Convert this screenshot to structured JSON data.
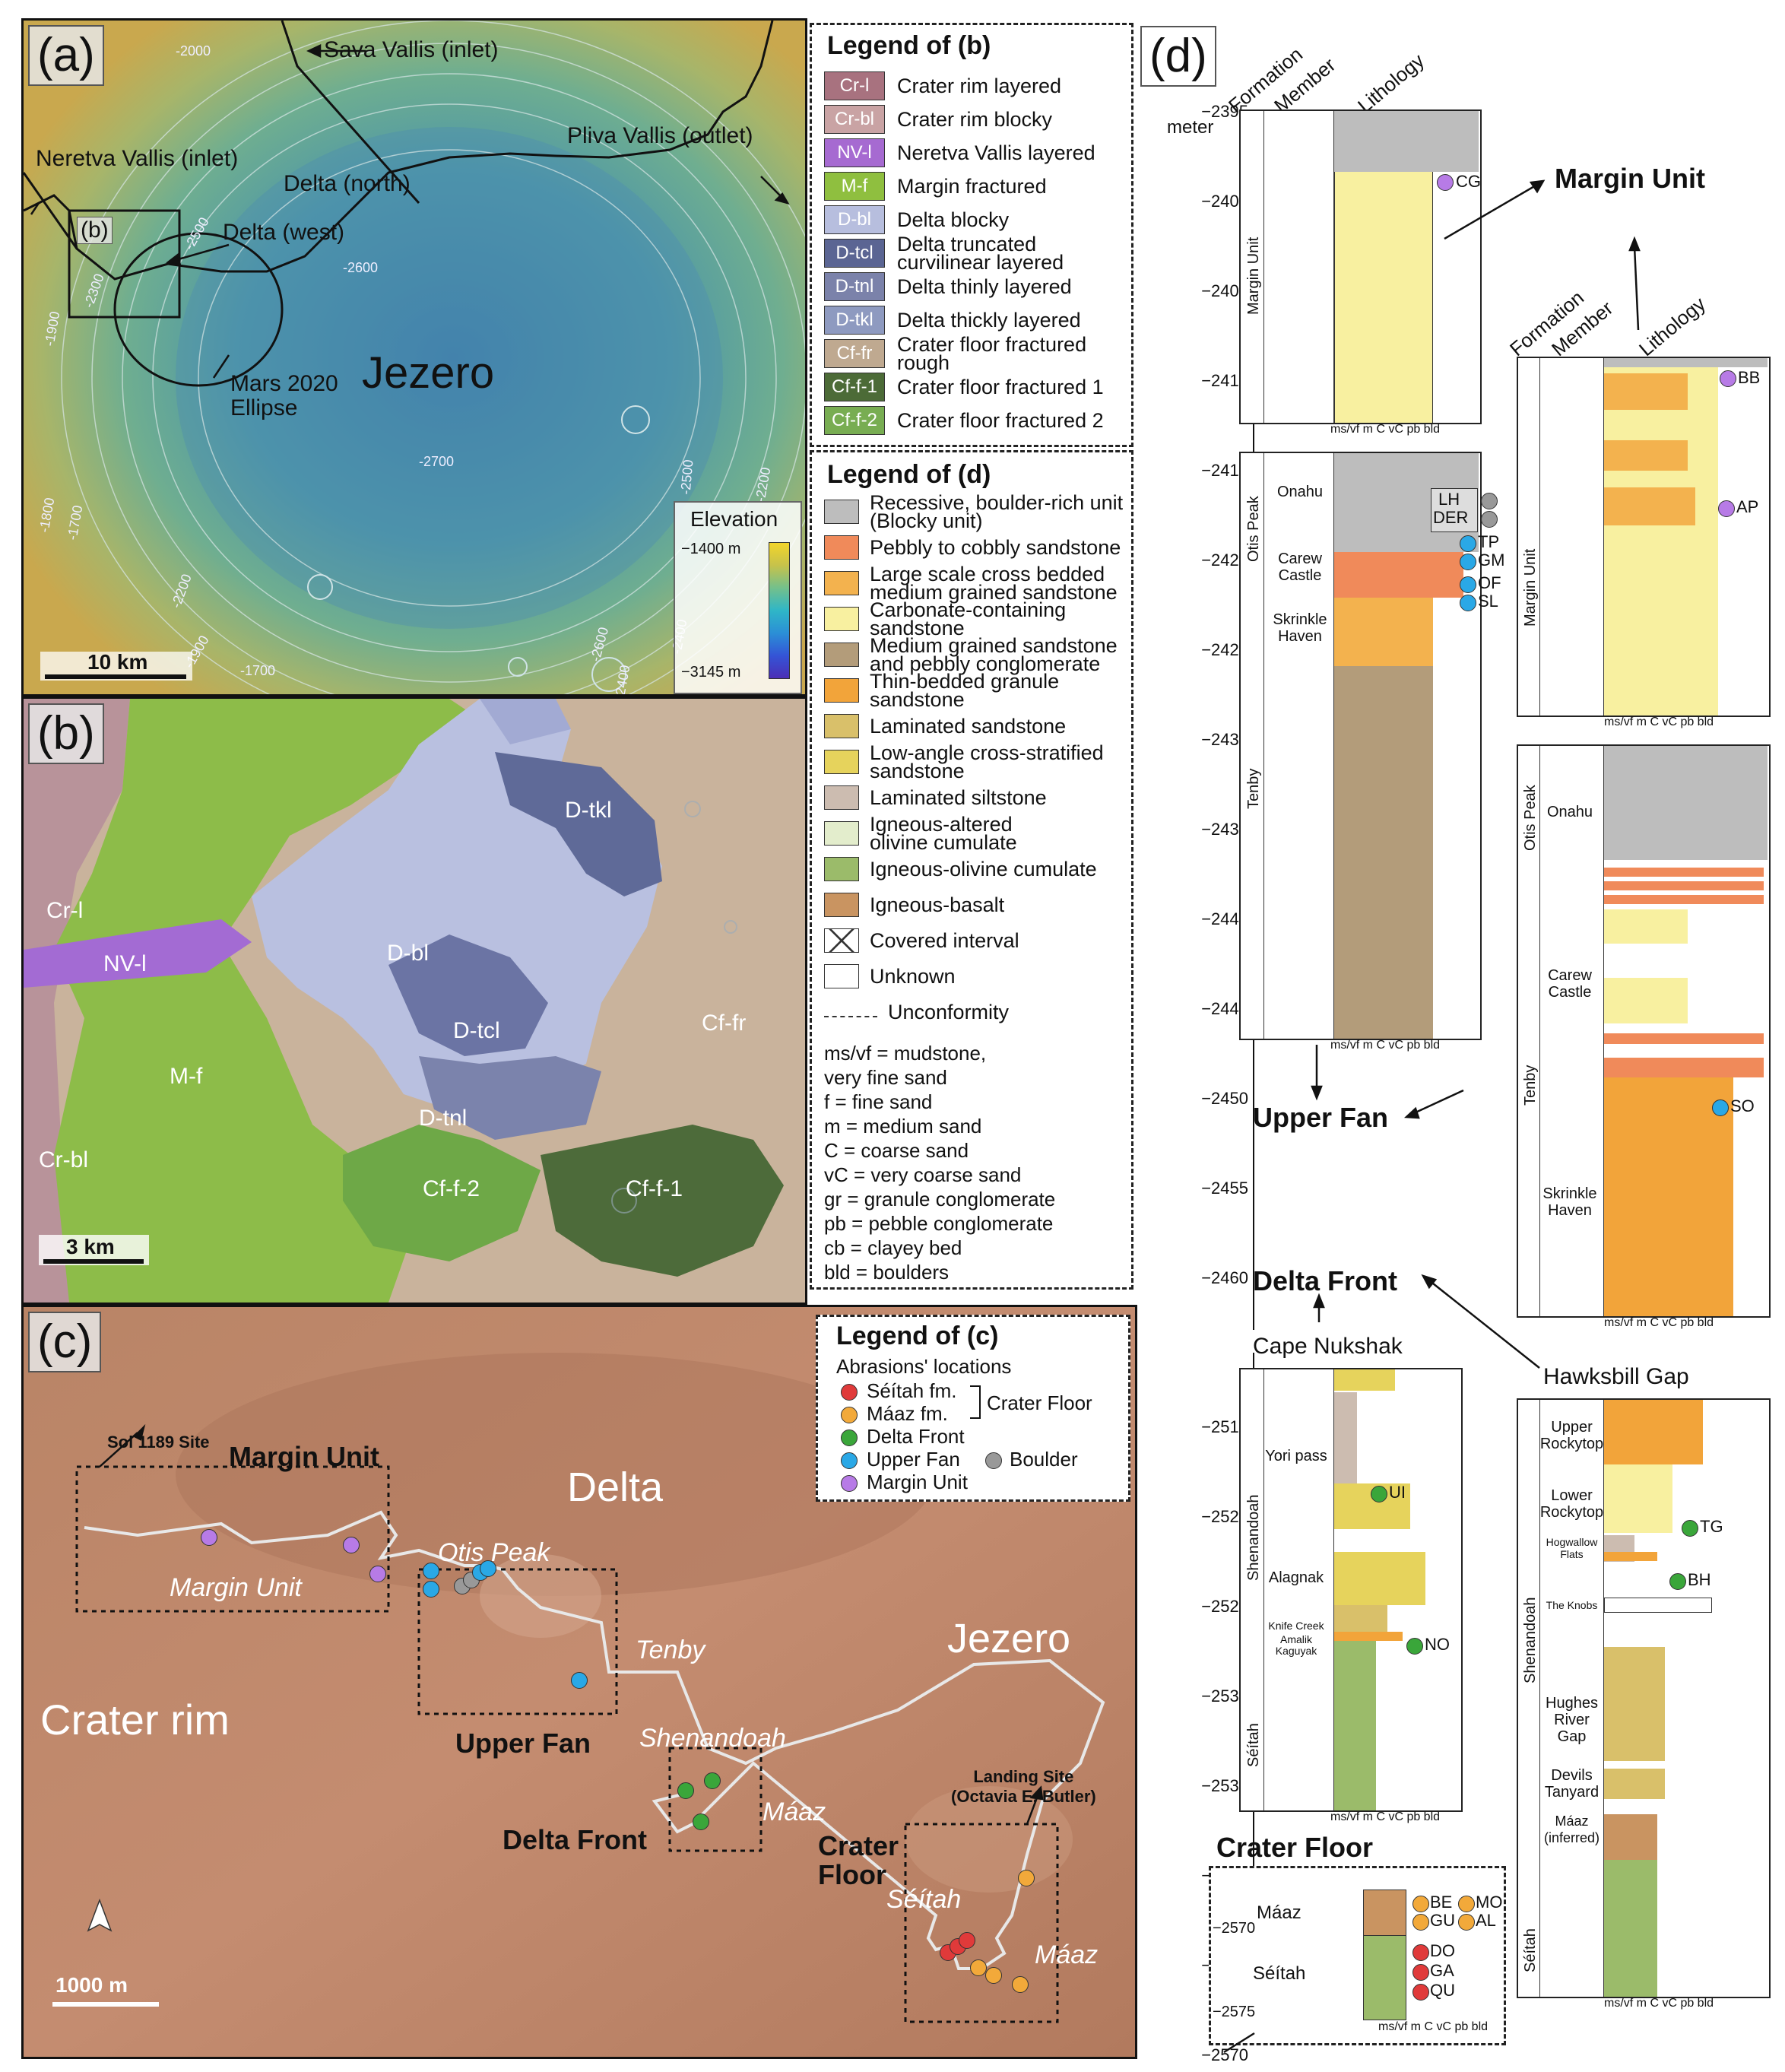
{
  "panel_a": {
    "label": "(a)",
    "labels": {
      "sava": "Sava Vallis (inlet)",
      "neretva": "Neretva Vallis (inlet)",
      "delta_north": "Delta (north)",
      "pliva": "Pliva Vallis (outlet)",
      "delta_west": "Delta (west)",
      "b_box": "(b)",
      "jezero": "Jezero",
      "ellipse": "Mars 2020\nEllipse"
    },
    "contours": [
      "-2000",
      "-2500",
      "-2600",
      "-2300",
      "-1900",
      "-1800",
      "-1700",
      "-2200",
      "-1900",
      "-1700",
      "-2700",
      "-2500",
      "-2400",
      "-2600",
      "-2200",
      "-2400"
    ],
    "elevation": {
      "title": "Elevation",
      "max": "−1400 m",
      "min": "−3145 m"
    },
    "scale": "10 km"
  },
  "panel_b": {
    "label": "(b)",
    "units": [
      "D-tkl",
      "Cr-l",
      "NV-l",
      "D-bl",
      "D-tcl",
      "M-f",
      "Cf-fr",
      "D-tnl",
      "Cr-bl",
      "Cf-f-2",
      "Cf-f-1"
    ],
    "scale": "3 km"
  },
  "panel_c": {
    "label": "(c)",
    "labels": {
      "sol": "Sol 1189 Site",
      "margin_unit_top": "Margin Unit",
      "delta": "Delta",
      "otis": "Otis Peak",
      "margin_unit_it": "Margin Unit",
      "tenby": "Tenby",
      "jezero": "Jezero",
      "crater_rim": "Crater rim",
      "upper_fan": "Upper Fan",
      "shenandoah": "Shenandoah",
      "landing": "Landing Site\n(Octavia E. Butler)",
      "maaz1": "Máaz",
      "delta_front": "Delta Front",
      "crater_floor": "Crater\nFloor",
      "seitah": "Séítah",
      "maaz2": "Máaz"
    },
    "scale": "1000 m",
    "north": "N"
  },
  "legend_b": {
    "title": "Legend of (b)",
    "items": [
      {
        "code": "Cr-l",
        "label": "Crater rim layered",
        "color": "#a8727f"
      },
      {
        "code": "Cr-bl",
        "label": "Crater rim blocky",
        "color": "#c9a3a4"
      },
      {
        "code": "NV-l",
        "label": "Neretva Vallis layered",
        "color": "#a66ad1"
      },
      {
        "code": "M-f",
        "label": "Margin fractured",
        "color": "#8fbf3f"
      },
      {
        "code": "D-bl",
        "label": "Delta blocky",
        "color": "#b7bede"
      },
      {
        "code": "D-tcl",
        "label": "Delta truncated\ncurvilinear layered",
        "color": "#5b6593"
      },
      {
        "code": "D-tnl",
        "label": "Delta thinly layered",
        "color": "#7b82aa"
      },
      {
        "code": "D-tkl",
        "label": "Delta thickly layered",
        "color": "#8e9ac0"
      },
      {
        "code": "Cf-fr",
        "label": "Crater floor fractured\nrough",
        "color": "#bfa990"
      },
      {
        "code": "Cf-f-1",
        "label": "Crater floor fractured 1",
        "color": "#4c6b37"
      },
      {
        "code": "Cf-f-2",
        "label": "Crater floor fractured 2",
        "color": "#78ad52"
      }
    ]
  },
  "legend_d": {
    "title": "Legend of (d)",
    "items": [
      {
        "label": "Recessive, boulder-rich unit\n(Blocky unit)",
        "color": "#bdbdbd"
      },
      {
        "label": "Pebbly to cobbly sandstone",
        "color": "#f08a5a"
      },
      {
        "label": "Large scale cross bedded\nmedium grained sandstone",
        "color": "#f3b24e"
      },
      {
        "label": "Carbonate-containing\nsandstone",
        "color": "#f8f0a0"
      },
      {
        "label": "Medium grained sandstone\nand pebbly conglomerate",
        "color": "#b39c7a"
      },
      {
        "label": "Thin-bedded granule\nsandstone",
        "color": "#f2a43a"
      },
      {
        "label": "Laminated sandstone",
        "color": "#d9c06a"
      },
      {
        "label": "Low-angle cross-stratified\nsandstone",
        "color": "#e6d35c"
      },
      {
        "label": "Laminated siltstone",
        "color": "#ccbcb0"
      },
      {
        "label": "Igneous-altered\nolivine cumulate",
        "color": "#e3edcc"
      },
      {
        "label": "Igneous-olivine cumulate",
        "color": "#9bbb6a"
      },
      {
        "label": "Igneous-basalt",
        "color": "#c99461"
      },
      {
        "label": "Covered interval",
        "color": "#ffffff"
      },
      {
        "label": "Unknown",
        "color": "#ffffff"
      },
      {
        "label": "Unconformity",
        "color": ""
      }
    ],
    "abbreviations": [
      "ms/vf = mudstone,",
      "very fine sand",
      "f = fine sand",
      "m = medium sand",
      "C = coarse sand",
      "vC = very coarse sand",
      "gr = granule conglomerate",
      "pb = pebble conglomerate",
      "cb = clayey bed",
      "bld = boulders"
    ]
  },
  "legend_c": {
    "title": "Legend of (c)",
    "subtitle": "Abrasions' locations",
    "items": [
      {
        "label": "Séítah fm.",
        "color": "#e03a3a"
      },
      {
        "label": "Máaz fm.",
        "color": "#f2a93a"
      },
      {
        "label": "Delta Front",
        "color": "#3aa63a"
      },
      {
        "label": "Upper Fan",
        "color": "#2aa8e6"
      },
      {
        "label": "Margin Unit",
        "color": "#b77be6"
      }
    ],
    "boulder": {
      "label": "Boulder",
      "color": "#999999"
    },
    "bracket": "Crater Floor"
  },
  "panel_d": {
    "label": "(d)",
    "headers": [
      "Formation",
      "Member",
      "Lithology"
    ],
    "unit": "meter",
    "yticks_top": [
      "−2395",
      "−2400",
      "−2405",
      "−2410",
      "−2415",
      "−2420",
      "−2425",
      "−2430",
      "−2435",
      "−2440",
      "−2445",
      "−2450",
      "−2455",
      "−2460"
    ],
    "yticks_bottom": [
      "−2515",
      "−2520",
      "−2525",
      "−2530",
      "−2535",
      "−2540",
      "−2545",
      "−2570"
    ],
    "cf_ticks": [
      "−2570",
      "−2575"
    ],
    "grain_sizes": "ms/vf  m  C vC pb bld",
    "grain_sub": "f    C  gr  cb",
    "labels": {
      "margin_unit": "Margin Unit",
      "upper_fan": "Upper Fan",
      "delta_front": "Delta Front",
      "cape": "Cape Nukshak",
      "hawksbill": "Hawksbill Gap",
      "crater_floor": "Crater Floor"
    },
    "formations": {
      "margin": "Margin Unit",
      "otis": "Otis Peak",
      "tenby": "Tenby",
      "shenandoah": "Shenandoah",
      "seitah": "Séítah",
      "maaz": "Máaz"
    },
    "members": {
      "onahu": "Onahu",
      "carew": "Carew\nCastle",
      "skrinkle": "Skrinkle\nHaven",
      "yori": "Yori pass",
      "alagnak": "Alagnak",
      "knife": "Knife Creek",
      "amalik": "Amalik",
      "kaguyak": "Kaguyak",
      "upper_rocky": "Upper\nRockytop",
      "lower_rocky": "Lower\nRockytop",
      "hogwallow": "Hogwallow\nFlats",
      "knobs": "The Knobs",
      "hughes": "Hughes\nRiver\nGap",
      "devils": "Devils\nTanyard",
      "maaz_inf": "Máaz\n(inferred)"
    },
    "samples": {
      "CG": "CG",
      "LH": "LH",
      "DER": "DER",
      "TP": "TP",
      "GM": "GM",
      "OF": "OF",
      "SL": "SL",
      "BB": "BB",
      "AP": "AP",
      "SO": "SO",
      "UI": "UI",
      "NO": "NO",
      "TG": "TG",
      "BH": "BH",
      "BE": "BE",
      "MO": "MO",
      "GU": "GU",
      "AL": "AL",
      "DO": "DO",
      "GA": "GA",
      "QU": "QU"
    }
  }
}
